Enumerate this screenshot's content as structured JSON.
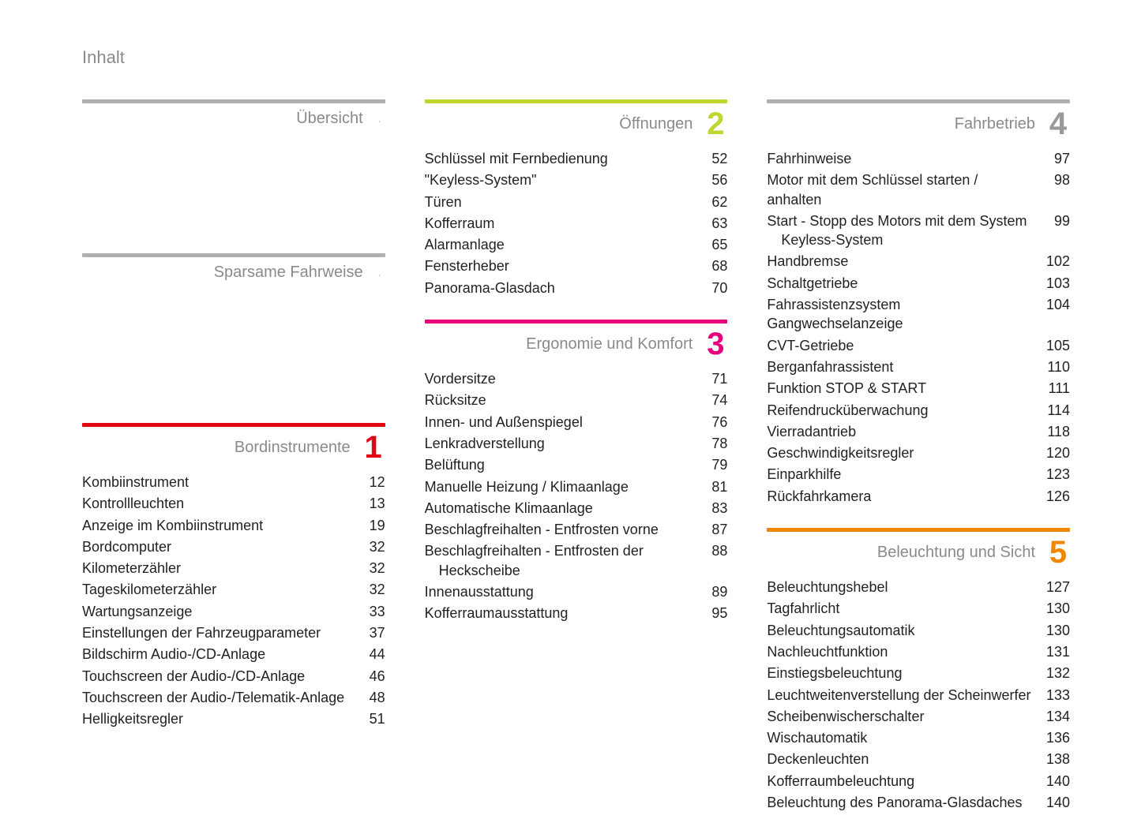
{
  "pageTitle": "Inhalt",
  "colors": {
    "grey": "#b0b0b0",
    "grey_text": "#9a9a9a",
    "red": "#e30613",
    "lime": "#c0d62f",
    "magenta": "#e6007e",
    "orange": "#f18700"
  },
  "layout": {
    "columns": [
      [
        "uebersicht",
        "sparsame",
        "bordinstrumente"
      ],
      [
        "oeffnungen",
        "ergonomie"
      ],
      [
        "fahrbetrieb",
        "beleuchtung"
      ]
    ]
  },
  "sections": {
    "uebersicht": {
      "title": "Übersicht",
      "numberDisplay": ".",
      "ruleColor": "#b0b0b0",
      "numberColor": "#bdbdbd",
      "dot": true,
      "entries": []
    },
    "sparsame": {
      "title": "Sparsame Fahrweise",
      "numberDisplay": ".",
      "ruleColor": "#b0b0b0",
      "numberColor": "#bdbdbd",
      "dot": true,
      "entries": []
    },
    "bordinstrumente": {
      "title": "Bordinstrumente",
      "numberDisplay": "1",
      "ruleColor": "#e30613",
      "numberColor": "#e30613",
      "dot": false,
      "entries": [
        {
          "label": "Kombiinstrument",
          "page": "12"
        },
        {
          "label": "Kontrollleuchten",
          "page": "13"
        },
        {
          "label": "Anzeige im Kombiinstrument",
          "page": "19"
        },
        {
          "label": "Bordcomputer",
          "page": "32"
        },
        {
          "label": "Kilometerzähler",
          "page": "32"
        },
        {
          "label": "Tageskilometerzähler",
          "page": "32"
        },
        {
          "label": "Wartungsanzeige",
          "page": "33"
        },
        {
          "label": "Einstellungen der Fahrzeugparameter",
          "page": "37"
        },
        {
          "label": "Bildschirm Audio-/CD-Anlage",
          "page": "44"
        },
        {
          "label": "Touchscreen der Audio-/CD-Anlage",
          "page": "46"
        },
        {
          "label": "Touchscreen der Audio-/Telematik-Anlage",
          "page": "48"
        },
        {
          "label": "Helligkeitsregler",
          "page": "51"
        }
      ]
    },
    "oeffnungen": {
      "title": "Öffnungen",
      "numberDisplay": "2",
      "ruleColor": "#c0d62f",
      "numberColor": "#c0d62f",
      "dot": false,
      "entries": [
        {
          "label": "Schlüssel mit Fernbedienung",
          "page": "52"
        },
        {
          "label": "\"Keyless-System\"",
          "page": "56"
        },
        {
          "label": "Türen",
          "page": "62"
        },
        {
          "label": "Kofferraum",
          "page": "63"
        },
        {
          "label": "Alarmanlage",
          "page": "65"
        },
        {
          "label": "Fensterheber",
          "page": "68"
        },
        {
          "label": "Panorama-Glasdach",
          "page": "70"
        }
      ]
    },
    "ergonomie": {
      "title": "Ergonomie und Komfort",
      "numberDisplay": "3",
      "ruleColor": "#e6007e",
      "numberColor": "#e6007e",
      "dot": false,
      "entries": [
        {
          "label": "Vordersitze",
          "page": "71"
        },
        {
          "label": "Rücksitze",
          "page": "74"
        },
        {
          "label": "Innen- und Außenspiegel",
          "page": "76"
        },
        {
          "label": "Lenkradverstellung",
          "page": "78"
        },
        {
          "label": "Belüftung",
          "page": "79"
        },
        {
          "label": "Manuelle Heizung / Klimaanlage",
          "page": "81"
        },
        {
          "label": "Automatische Klimaanlage",
          "page": "83"
        },
        {
          "label": "Beschlagfreihalten - Entfrosten vorne",
          "page": "87"
        },
        {
          "label": "Beschlagfreihalten - Entfrosten der Heckscheibe",
          "page": "88",
          "wrapIndent": true
        },
        {
          "label": "Innenausstattung",
          "page": "89"
        },
        {
          "label": "Kofferraumausstattung",
          "page": "95"
        }
      ]
    },
    "fahrbetrieb": {
      "title": "Fahrbetrieb",
      "numberDisplay": "4",
      "ruleColor": "#b0b0b0",
      "numberColor": "#9a9a9a",
      "dot": false,
      "entries": [
        {
          "label": "Fahrhinweise",
          "page": "97"
        },
        {
          "label": "Motor mit dem Schlüssel starten / anhalten",
          "page": "98"
        },
        {
          "label": "Start - Stopp des Motors mit dem System Keyless-System",
          "page": "99",
          "wrapIndent": true
        },
        {
          "label": "Handbremse",
          "page": "102"
        },
        {
          "label": "Schaltgetriebe",
          "page": "103"
        },
        {
          "label": "Fahrassistenzsystem Gangwechselanzeige",
          "page": "104"
        },
        {
          "label": "CVT-Getriebe",
          "page": "105"
        },
        {
          "label": "Berganfahrassistent",
          "page": "110"
        },
        {
          "label": "Funktion STOP & START",
          "page": "111"
        },
        {
          "label": "Reifendrucküberwachung",
          "page": "114"
        },
        {
          "label": "Vierradantrieb",
          "page": "118"
        },
        {
          "label": "Geschwindigkeitsregler",
          "page": "120"
        },
        {
          "label": "Einparkhilfe",
          "page": "123"
        },
        {
          "label": "Rückfahrkamera",
          "page": "126"
        }
      ]
    },
    "beleuchtung": {
      "title": "Beleuchtung und Sicht",
      "numberDisplay": "5",
      "ruleColor": "#f18700",
      "numberColor": "#f18700",
      "dot": false,
      "entries": [
        {
          "label": "Beleuchtungshebel",
          "page": "127"
        },
        {
          "label": "Tagfahrlicht",
          "page": "130"
        },
        {
          "label": "Beleuchtungsautomatik",
          "page": "130"
        },
        {
          "label": "Nachleuchtfunktion",
          "page": "131"
        },
        {
          "label": "Einstiegsbeleuchtung",
          "page": "132"
        },
        {
          "label": "Leuchtweitenverstellung der Scheinwerfer",
          "page": "133"
        },
        {
          "label": "Scheibenwischerschalter",
          "page": "134"
        },
        {
          "label": "Wischautomatik",
          "page": "136"
        },
        {
          "label": "Deckenleuchten",
          "page": "138"
        },
        {
          "label": "Kofferraumbeleuchtung",
          "page": "140"
        },
        {
          "label": "Beleuchtung des Panorama-Glasdaches",
          "page": "140"
        }
      ]
    }
  }
}
